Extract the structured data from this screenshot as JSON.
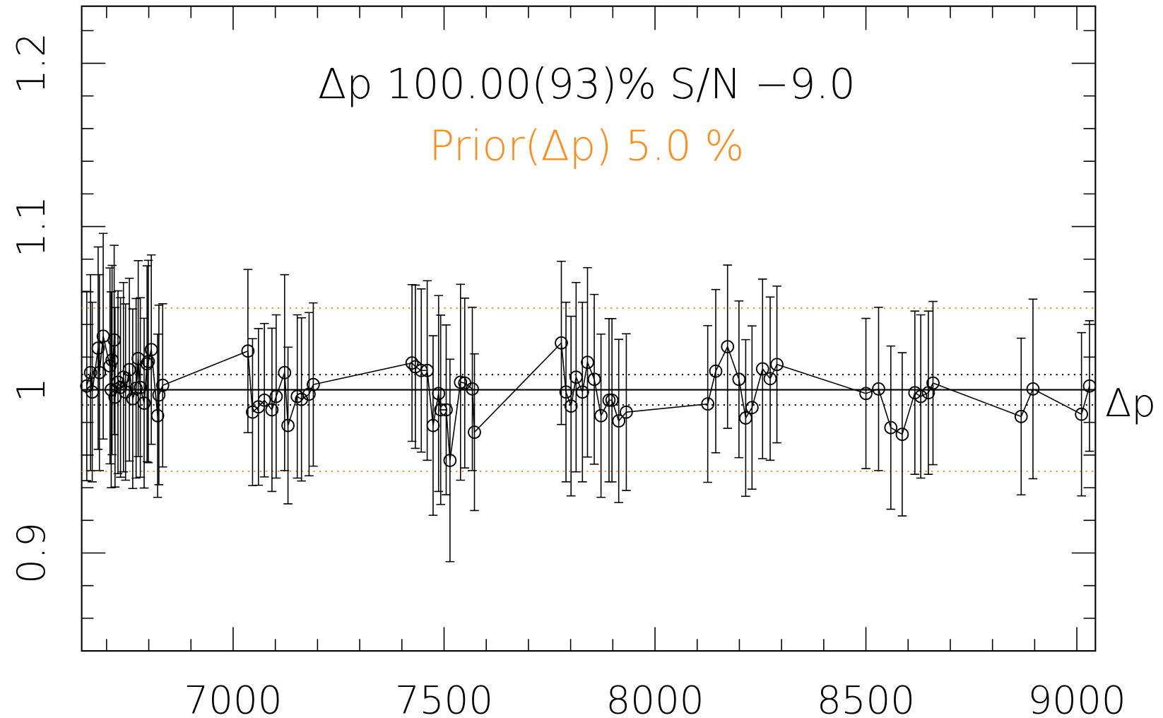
{
  "chart_data": {
    "type": "errorbar",
    "title": "Δp 100.00(93)% S/N −9.0",
    "title_color": "#000000",
    "subtitle": "Prior(Δp) 5.0 %",
    "subtitle_color": "#ff8c1a",
    "right_label": "Δp",
    "color": "#000000",
    "x": [
      6653,
      6662,
      6666,
      6680,
      6683,
      6692,
      6708,
      6713,
      6711,
      6718,
      6720,
      6727,
      6733,
      6740,
      6745,
      6754,
      6762,
      6770,
      6775,
      6780,
      6789,
      6796,
      6799,
      6806,
      6821,
      6824,
      6833,
      7035,
      7046,
      7060,
      7074,
      7092,
      7102,
      7122,
      7130,
      7152,
      7162,
      7180,
      7190,
      7424,
      7432,
      7446,
      7460,
      7474,
      7487,
      7492,
      7505,
      7514,
      7539,
      7549,
      7567,
      7572,
      7778,
      7789,
      7801,
      7813,
      7828,
      7840,
      7856,
      7872,
      7891,
      7898,
      7914,
      7932,
      8125,
      8144,
      8172,
      8199,
      8215,
      8230,
      8255,
      8273,
      8289,
      8500,
      8530,
      8559,
      8586,
      8616,
      8630,
      8648,
      8659,
      8868,
      8896,
      9011,
      9030
    ],
    "values": [
      1.0023,
      1.0105,
      0.9986,
      1.0255,
      1.0105,
      1.0328,
      1.0146,
      1.0182,
      1.0,
      1.0305,
      0.9954,
      1.0046,
      1.0014,
      1.0077,
      0.9986,
      1.0123,
      0.9945,
      1.0009,
      1.0191,
      1.0014,
      0.9918,
      1.0159,
      1.0173,
      1.0246,
      0.9841,
      0.9968,
      1.0027,
      1.0237,
      0.9863,
      0.9895,
      0.9936,
      0.9877,
      0.9959,
      1.0105,
      0.9781,
      0.9959,
      0.9941,
      0.9973,
      1.0032,
      1.0164,
      1.0141,
      1.0118,
      1.0118,
      0.9781,
      0.9977,
      0.9877,
      0.9877,
      0.9567,
      1.0046,
      1.0041,
      1.0005,
      0.974,
      1.0287,
      0.9986,
      0.99,
      1.0077,
      0.9986,
      1.0168,
      1.0064,
      0.9841,
      0.9936,
      0.9936,
      0.9809,
      0.9863,
      0.9913,
      1.0114,
      1.0264,
      1.0064,
      0.9827,
      0.9891,
      1.0128,
      1.0068,
      1.0155,
      0.9977,
      1.0005,
      0.9768,
      0.9727,
      0.9982,
      0.9959,
      0.9982,
      1.0041,
      0.9836,
      1.0005,
      0.985,
      1.0023
    ],
    "errors": [
      0.058,
      0.06,
      0.055,
      0.062,
      0.06,
      0.063,
      0.06,
      0.058,
      0.06,
      0.058,
      0.055,
      0.056,
      0.055,
      0.058,
      0.054,
      0.056,
      0.055,
      0.055,
      0.06,
      0.055,
      0.052,
      0.06,
      0.062,
      0.058,
      0.05,
      0.055,
      0.05,
      0.05,
      0.045,
      0.048,
      0.047,
      0.05,
      0.05,
      0.06,
      0.048,
      0.05,
      0.05,
      0.05,
      0.05,
      0.048,
      0.05,
      0.05,
      0.055,
      0.055,
      0.06,
      0.058,
      0.052,
      0.062,
      0.06,
      0.052,
      0.05,
      0.048,
      0.05,
      0.055,
      0.055,
      0.058,
      0.055,
      0.058,
      0.052,
      0.05,
      0.05,
      0.05,
      0.05,
      0.048,
      0.048,
      0.05,
      0.05,
      0.048,
      0.048,
      0.05,
      0.055,
      0.05,
      0.048,
      0.046,
      0.05,
      0.05,
      0.05,
      0.05,
      0.05,
      0.05,
      0.05,
      0.048,
      0.055,
      0.05,
      0.04
    ],
    "reference_lines": [
      {
        "y": 1,
        "style": "solid",
        "color": "#000000"
      },
      {
        "y": 1.0093,
        "style": "dotted",
        "color": "#000000"
      },
      {
        "y": 0.9907,
        "style": "dotted",
        "color": "#000000"
      },
      {
        "y": 1.05,
        "style": "dotted",
        "color": "#ff8c1a"
      },
      {
        "y": 0.95,
        "style": "dotted",
        "color": "#ff8c1a"
      }
    ],
    "xlim": [
      6641,
      9044
    ],
    "ylim": [
      0.84,
      1.235
    ],
    "xticks": [
      7000,
      7500,
      8000,
      8500,
      9000
    ],
    "xminorticks": [
      6700,
      6800,
      6900,
      7100,
      7200,
      7300,
      7400,
      7600,
      7700,
      7800,
      7900,
      8100,
      8200,
      8300,
      8400,
      8600,
      8700,
      8800,
      8900
    ],
    "yticks": [
      0.9,
      1,
      1.1,
      1.2
    ],
    "yminorticks": [
      0.86,
      0.88,
      0.92,
      0.94,
      0.96,
      0.98,
      1.02,
      1.04,
      1.06,
      1.08,
      1.12,
      1.14,
      1.16,
      1.18,
      1.22
    ]
  }
}
